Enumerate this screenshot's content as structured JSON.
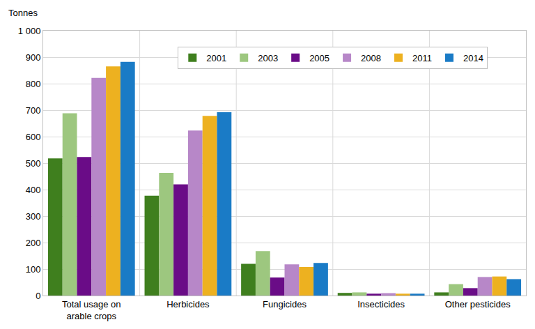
{
  "chart_data": {
    "type": "bar",
    "y_label": "Tonnes",
    "categories": [
      "Total usage on arable crops",
      "Herbicides",
      "Fungicides",
      "Insecticides",
      "Other pesticides"
    ],
    "series": [
      {
        "name": "2001",
        "color": "#3f7f1e",
        "values": [
          518,
          377,
          120,
          10,
          12
        ]
      },
      {
        "name": "2003",
        "color": "#9dc77f",
        "values": [
          688,
          463,
          168,
          12,
          43
        ]
      },
      {
        "name": "2005",
        "color": "#6a0c87",
        "values": [
          523,
          420,
          68,
          7,
          28
        ]
      },
      {
        "name": "2008",
        "color": "#b787c8",
        "values": [
          822,
          623,
          118,
          9,
          70
        ]
      },
      {
        "name": "2011",
        "color": "#edb120",
        "values": [
          865,
          678,
          108,
          7,
          72
        ]
      },
      {
        "name": "2014",
        "color": "#1a7bc6",
        "values": [
          882,
          692,
          123,
          7,
          62
        ]
      }
    ],
    "ylim": [
      0,
      1000
    ],
    "yticks": [
      0,
      100,
      200,
      300,
      400,
      500,
      600,
      700,
      800,
      900,
      {
        "value": 1000,
        "label": "1 000"
      }
    ],
    "grid": true,
    "legend": "top"
  }
}
